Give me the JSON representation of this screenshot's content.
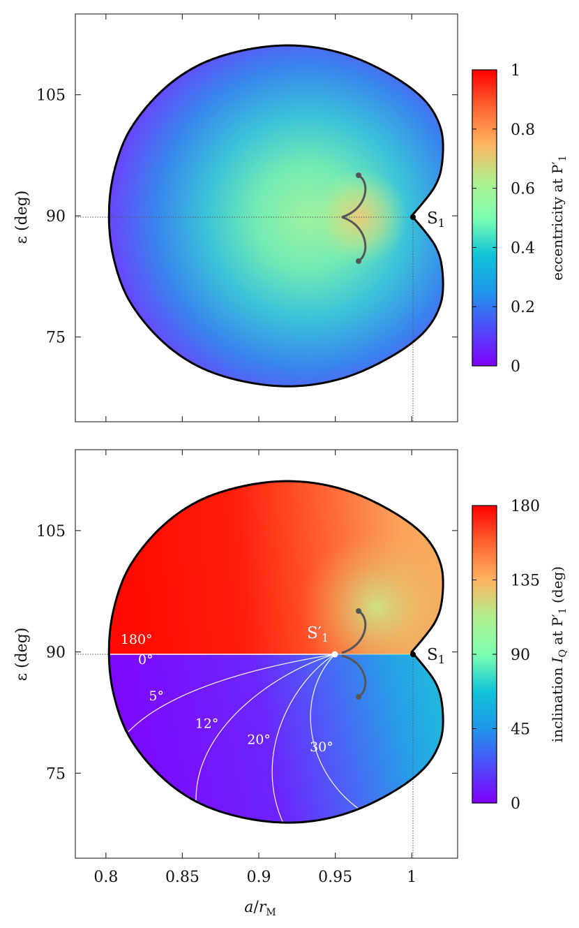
{
  "chart_data": [
    {
      "type": "heatmap",
      "title": "",
      "xlabel": "",
      "ylabel": "ε (deg)",
      "xlim": [
        0.78,
        1.03
      ],
      "ylim": [
        64.5,
        115
      ],
      "xticks": [
        0.8,
        0.85,
        0.9,
        0.95,
        1
      ],
      "yticks": [
        75,
        90,
        105
      ],
      "xtick_labels": [],
      "ytick_labels": [
        "75",
        "90",
        "105"
      ],
      "grid": false,
      "colorbar": {
        "label": "eccentricity at P′1",
        "range": [
          0,
          1
        ],
        "ticks": [
          0,
          0.2,
          0.4,
          0.6,
          0.8,
          1
        ],
        "tick_labels": [
          "0",
          "0.2",
          "0.4",
          "0.6",
          "0.8",
          "1"
        ],
        "colormap": "rainbow"
      },
      "region_boundary": {
        "shape": "cardioid-like",
        "a_range": [
          0.802,
          1.02
        ],
        "eps_range": [
          68.9,
          111.1
        ]
      },
      "annotations": [
        {
          "text": "S1",
          "at": [
            1.0,
            90
          ]
        }
      ],
      "reference_lines": {
        "a": 1.0,
        "eps": 90
      },
      "inner_curves": [
        {
          "from": [
            0.966,
            95.2
          ],
          "via": [
            0.951,
            90
          ]
        },
        {
          "from": [
            0.966,
            84.8
          ],
          "via": [
            0.951,
            90
          ]
        }
      ]
    },
    {
      "type": "heatmap",
      "title": "",
      "xlabel": "a/rM",
      "ylabel": "ε (deg)",
      "xlim": [
        0.78,
        1.03
      ],
      "ylim": [
        64.5,
        115
      ],
      "xticks": [
        0.8,
        0.85,
        0.9,
        0.95,
        1
      ],
      "yticks": [
        75,
        90,
        105
      ],
      "xtick_labels": [
        "0.8",
        "0.85",
        "0.9",
        "0.95",
        "1"
      ],
      "ytick_labels": [
        "75",
        "90",
        "105"
      ],
      "grid": false,
      "colorbar": {
        "label": "inclination IQ at P′1 (deg)",
        "range": [
          0,
          180
        ],
        "ticks": [
          0,
          45,
          90,
          135,
          180
        ],
        "tick_labels": [
          "0",
          "45",
          "90",
          "135",
          "180"
        ],
        "colormap": "rainbow"
      },
      "annotations": [
        {
          "text": "S1",
          "at": [
            1.0,
            90
          ]
        },
        {
          "text": "S′1",
          "at": [
            0.95,
            90
          ]
        }
      ],
      "contours": [
        {
          "label": "180°",
          "at": [
            0.82,
            91.0
          ]
        },
        {
          "label": "0°",
          "at": [
            0.826,
            88.5
          ]
        },
        {
          "label": "5°",
          "at": [
            0.833,
            84.0
          ]
        },
        {
          "label": "12°",
          "at": [
            0.866,
            80.6
          ]
        },
        {
          "label": "20°",
          "at": [
            0.9,
            78.6
          ]
        },
        {
          "label": "30°",
          "at": [
            0.941,
            77.7
          ]
        }
      ],
      "reference_lines": {
        "a": 1.0,
        "eps": 90
      }
    }
  ]
}
